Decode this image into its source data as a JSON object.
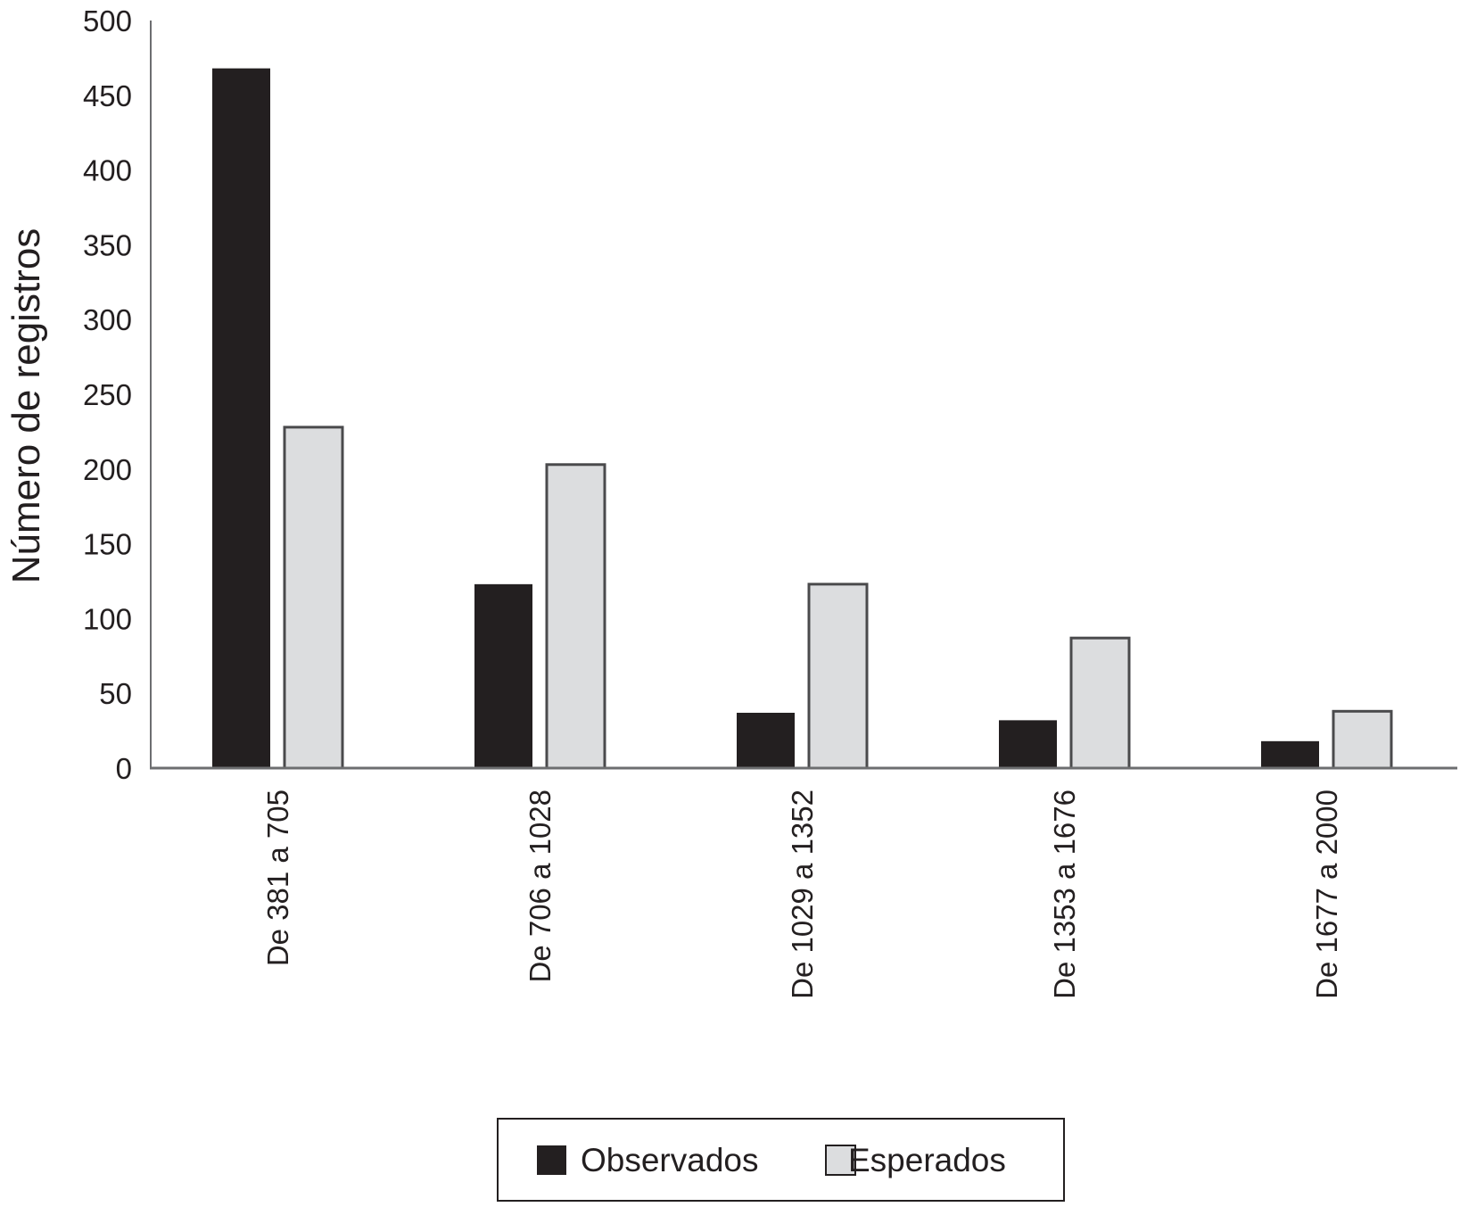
{
  "chart_data": {
    "type": "bar",
    "title": "",
    "xlabel": "",
    "ylabel": "Número de registros",
    "ylim": [
      0,
      500
    ],
    "yticks": [
      0,
      50,
      100,
      150,
      200,
      250,
      300,
      350,
      400,
      450,
      500
    ],
    "grid": false,
    "legend_position": "bottom",
    "categories": [
      "De 381 a 705",
      "De 706 a 1028",
      "De 1029 a 1352",
      "De 1353 a 1676",
      "De 1677 a 2000"
    ],
    "series": [
      {
        "name": "Observados",
        "color": "#231f20",
        "values": [
          468,
          123,
          37,
          32,
          18
        ]
      },
      {
        "name": "Esperados",
        "color": "#dcdddf",
        "values": [
          228,
          203,
          123,
          87,
          38
        ]
      }
    ]
  }
}
